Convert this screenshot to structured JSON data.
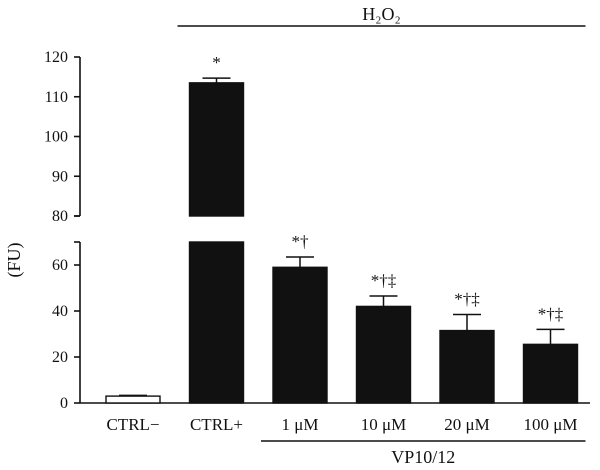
{
  "chart_data": {
    "type": "bar",
    "ylabel": "(FU)",
    "axis_break": {
      "lower_range": [
        0,
        70
      ],
      "upper_range": [
        80,
        120
      ]
    },
    "lower_ticks": [
      0,
      20,
      40,
      60
    ],
    "upper_ticks": [
      80,
      90,
      100,
      110,
      120
    ],
    "categories": [
      "CTRL−",
      "CTRL+",
      "1 μM",
      "10 μM",
      "20 μM",
      "100 μM"
    ],
    "values": [
      3,
      113.5,
      59,
      42,
      31.5,
      25.5
    ],
    "errors": [
      0.3,
      1.2,
      4.5,
      4.5,
      7,
      6.5
    ],
    "fills": [
      "#ffffff",
      "#111111",
      "#111111",
      "#111111",
      "#111111",
      "#111111"
    ],
    "annotations": [
      "",
      "*",
      "*†",
      "*†‡",
      "*†‡",
      "*†‡"
    ],
    "groups": [
      {
        "label": "H₂O₂",
        "position": "top",
        "from": 1,
        "to": 5
      },
      {
        "label": "VP10/12",
        "position": "bottom",
        "from": 2,
        "to": 5
      }
    ]
  }
}
